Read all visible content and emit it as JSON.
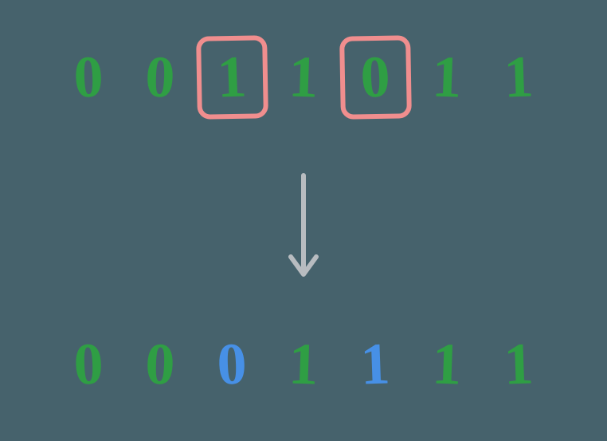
{
  "diagram": {
    "type": "infographic",
    "background_color": "#46626c",
    "digit_fontsize": 74,
    "digit_font_family": "Comic Sans MS, cursive",
    "colors": {
      "green": "#2f9e44",
      "blue": "#4790e6",
      "highlight_border": "#f08e8e",
      "arrow": "#b8bcc0"
    },
    "top_row": {
      "digits": [
        "0",
        "0",
        "1",
        "1",
        "0",
        "1",
        "1"
      ],
      "digit_colors": [
        "#2f9e44",
        "#2f9e44",
        "#2f9e44",
        "#2f9e44",
        "#2f9e44",
        "#2f9e44",
        "#2f9e44"
      ],
      "highlighted_indices": [
        2,
        4
      ],
      "highlight_color": "#f08e8e",
      "highlight_border_width": 6,
      "highlight_border_radius": 16
    },
    "bottom_row": {
      "digits": [
        "0",
        "0",
        "0",
        "1",
        "1",
        "1",
        "1"
      ],
      "digit_colors": [
        "#2f9e44",
        "#2f9e44",
        "#4790e6",
        "#2f9e44",
        "#4790e6",
        "#2f9e44",
        "#2f9e44"
      ]
    },
    "arrow": {
      "color": "#b8bcc0",
      "stroke_width": 6,
      "length": 140
    }
  }
}
